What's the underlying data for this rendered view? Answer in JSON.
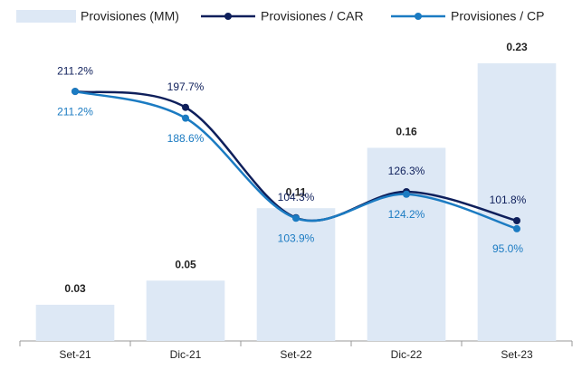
{
  "chart_data": {
    "type": "bar-line",
    "categories": [
      "Set-21",
      "Dic-21",
      "Set-22",
      "Dic-22",
      "Set-23"
    ],
    "series": [
      {
        "name": "Provisiones (MM)",
        "type": "bar",
        "color": "#dde8f5",
        "values": [
          0.03,
          0.05,
          0.11,
          0.16,
          0.23
        ]
      },
      {
        "name": "Provisiones / CAR",
        "type": "line",
        "axis": "y2",
        "color": "#0e1f5b",
        "values": [
          211.2,
          197.7,
          104.3,
          126.3,
          101.8
        ],
        "value_labels": [
          "211.2%",
          "197.7%",
          "104.3%",
          "126.3%",
          "101.8%"
        ]
      },
      {
        "name": "Provisiones / CP",
        "type": "line",
        "axis": "y2",
        "color": "#1b7bc2",
        "values": [
          211.2,
          188.6,
          103.9,
          124.2,
          95.0
        ],
        "value_labels": [
          "211.2%",
          "188.6%",
          "103.9%",
          "124.2%",
          "95.0%"
        ]
      }
    ],
    "ylim": [
      0,
      0.23
    ],
    "y2lim": [
      0,
      235
    ]
  }
}
